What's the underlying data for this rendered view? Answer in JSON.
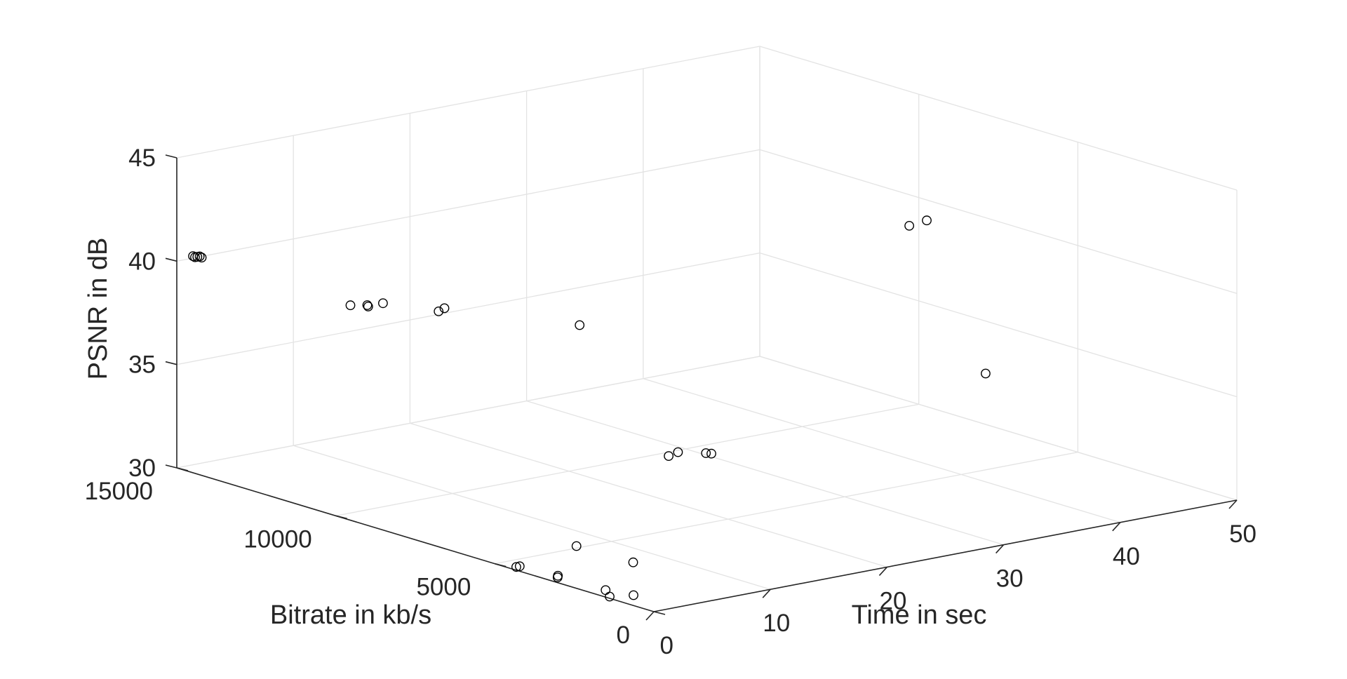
{
  "chart_data": {
    "type": "scatter",
    "projection": "3d",
    "title": "",
    "xlabel": "Time in sec",
    "ylabel": "Bitrate in kb/s",
    "zlabel": "PSNR in dB",
    "xlim": [
      0,
      50
    ],
    "ylim": [
      0,
      15000
    ],
    "zlim": [
      30,
      45
    ],
    "x_ticks": [
      "0",
      "10",
      "20",
      "30",
      "40",
      "50"
    ],
    "y_ticks": [
      "0",
      "5000",
      "10000",
      "15000"
    ],
    "z_ticks": [
      "30",
      "35",
      "40",
      "45"
    ],
    "grid": true,
    "marker": "open-circle",
    "marker_color": "#000000",
    "points": [
      {
        "x": 0.3,
        "y": 1500,
        "z": 30.0
      },
      {
        "x": 0.5,
        "y": 1700,
        "z": 30.2
      },
      {
        "x": 1.8,
        "y": 1300,
        "z": 30.0
      },
      {
        "x": 0.2,
        "y": 3100,
        "z": 30.2
      },
      {
        "x": 0.5,
        "y": 3200,
        "z": 30.2
      },
      {
        "x": 0.2,
        "y": 4400,
        "z": 30.1
      },
      {
        "x": 0.5,
        "y": 4400,
        "z": 30.1
      },
      {
        "x": 7.5,
        "y": 3400,
        "z": 30.0
      },
      {
        "x": 7.0,
        "y": 5000,
        "z": 30.1
      },
      {
        "x": 0.2,
        "y": 14500,
        "z": 40.4
      },
      {
        "x": 0.3,
        "y": 14600,
        "z": 40.4
      },
      {
        "x": 0.4,
        "y": 14500,
        "z": 40.4
      },
      {
        "x": 0.5,
        "y": 14400,
        "z": 40.4
      },
      {
        "x": 0.6,
        "y": 14500,
        "z": 40.4
      },
      {
        "x": 1.8,
        "y": 10200,
        "z": 39.9
      },
      {
        "x": 2.5,
        "y": 9900,
        "z": 39.9
      },
      {
        "x": 2.7,
        "y": 10000,
        "z": 39.9
      },
      {
        "x": 3.5,
        "y": 9800,
        "z": 40.0
      },
      {
        "x": 5.0,
        "y": 8600,
        "z": 40.0
      },
      {
        "x": 5.5,
        "y": 8600,
        "z": 40.1
      },
      {
        "x": 10.0,
        "y": 6000,
        "z": 40.0
      },
      {
        "x": 7.0,
        "y": 2100,
        "z": 35.8
      },
      {
        "x": 7.8,
        "y": 2100,
        "z": 35.9
      },
      {
        "x": 9.1,
        "y": 1700,
        "z": 35.9
      },
      {
        "x": 9.3,
        "y": 1600,
        "z": 35.9
      },
      {
        "x": 29.0,
        "y": 200,
        "z": 38.3
      },
      {
        "x": 32.0,
        "y": 3700,
        "z": 43.5
      },
      {
        "x": 33.5,
        "y": 3700,
        "z": 43.6
      }
    ]
  }
}
